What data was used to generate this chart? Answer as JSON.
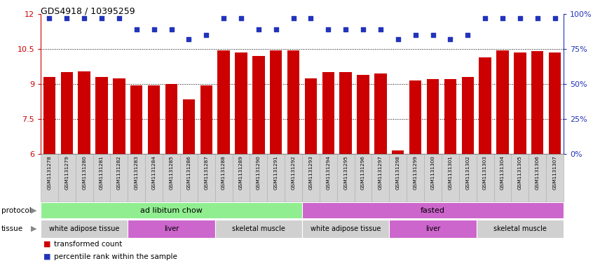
{
  "title": "GDS4918 / 10395259",
  "samples": [
    "GSM1131278",
    "GSM1131279",
    "GSM1131280",
    "GSM1131281",
    "GSM1131282",
    "GSM1131283",
    "GSM1131284",
    "GSM1131285",
    "GSM1131286",
    "GSM1131287",
    "GSM1131288",
    "GSM1131289",
    "GSM1131290",
    "GSM1131291",
    "GSM1131292",
    "GSM1131293",
    "GSM1131294",
    "GSM1131295",
    "GSM1131296",
    "GSM1131297",
    "GSM1131298",
    "GSM1131299",
    "GSM1131300",
    "GSM1131301",
    "GSM1131302",
    "GSM1131303",
    "GSM1131304",
    "GSM1131305",
    "GSM1131306",
    "GSM1131307"
  ],
  "bar_values": [
    9.3,
    9.5,
    9.55,
    9.3,
    9.25,
    8.95,
    8.95,
    9.0,
    8.35,
    8.95,
    10.45,
    10.35,
    10.2,
    10.45,
    10.45,
    9.25,
    9.5,
    9.5,
    9.4,
    9.45,
    6.15,
    9.15,
    9.2,
    9.2,
    9.3,
    10.15,
    10.45,
    10.35,
    10.4,
    10.35
  ],
  "dot_values": [
    97,
    97,
    97,
    97,
    97,
    89,
    89,
    89,
    82,
    85,
    97,
    97,
    89,
    89,
    97,
    97,
    89,
    89,
    89,
    89,
    82,
    85,
    85,
    82,
    85,
    97,
    97,
    97,
    97,
    97
  ],
  "ymin": 6.0,
  "ymax": 12.0,
  "yticks_left": [
    6.0,
    7.5,
    9.0,
    10.5,
    12.0
  ],
  "yticks_right": [
    0,
    25,
    50,
    75,
    100
  ],
  "bar_color": "#cc0000",
  "dot_color": "#2233bb",
  "protocol_groups": [
    {
      "label": "ad libitum chow",
      "start": 0,
      "end": 15,
      "color": "#90ee90"
    },
    {
      "label": "fasted",
      "start": 15,
      "end": 30,
      "color": "#cc66cc"
    }
  ],
  "tissue_groups": [
    {
      "label": "white adipose tissue",
      "start": 0,
      "end": 5,
      "color": "#d0d0d0"
    },
    {
      "label": "liver",
      "start": 5,
      "end": 10,
      "color": "#cc66cc"
    },
    {
      "label": "skeletal muscle",
      "start": 10,
      "end": 15,
      "color": "#d0d0d0"
    },
    {
      "label": "white adipose tissue",
      "start": 15,
      "end": 20,
      "color": "#d0d0d0"
    },
    {
      "label": "liver",
      "start": 20,
      "end": 25,
      "color": "#cc66cc"
    },
    {
      "label": "skeletal muscle",
      "start": 25,
      "end": 30,
      "color": "#d0d0d0"
    }
  ],
  "legend_items": [
    {
      "label": "transformed count",
      "color": "#cc0000"
    },
    {
      "label": "percentile rank within the sample",
      "color": "#2233bb"
    }
  ],
  "xtick_bg": "#d4d4d4",
  "xtick_border": "#aaaaaa"
}
